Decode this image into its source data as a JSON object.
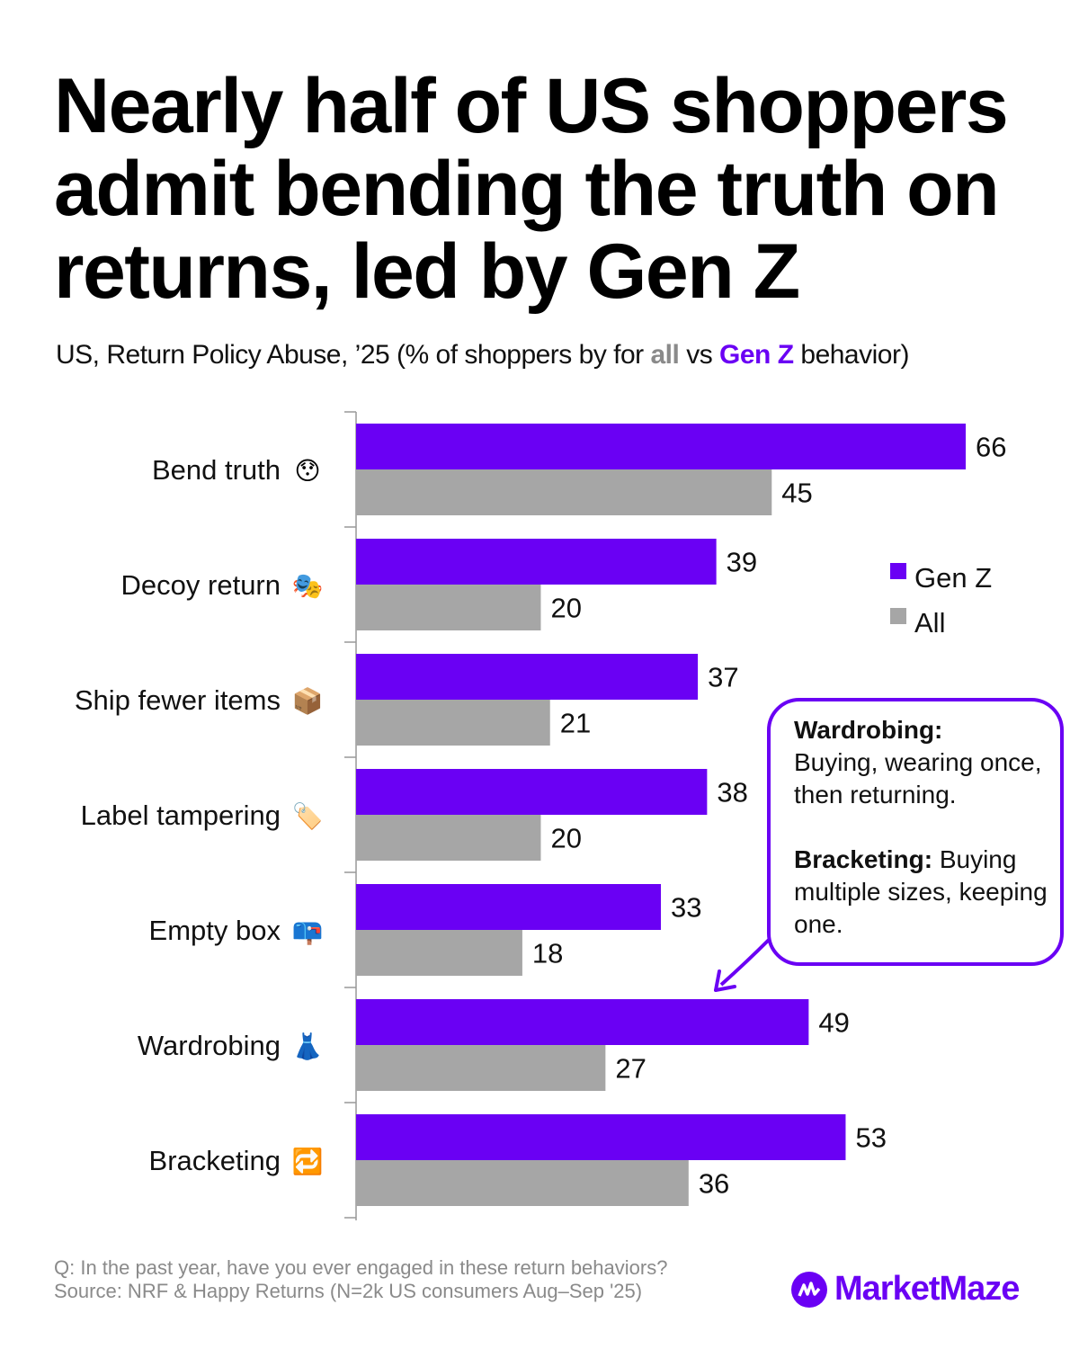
{
  "title": "Nearly half of US shoppers admit bending the truth on returns, led by Gen Z",
  "subtitle": {
    "pre": "US, Return Policy Abuse, ’25 (% of shoppers by for ",
    "all": "all",
    "mid": " vs ",
    "genz": "Gen Z",
    "post": " behavior)"
  },
  "chart_data": {
    "type": "bar",
    "orientation": "horizontal",
    "categories": [
      "Bend truth",
      "Decoy return",
      "Ship fewer items",
      "Label tampering",
      "Empty box",
      "Wardrobing",
      "Bracketing"
    ],
    "category_emojis": [
      "😯",
      "🎭",
      "📦",
      "🏷️",
      "📪",
      "👗",
      "🔁"
    ],
    "series": [
      {
        "name": "Gen Z",
        "color": "#6a00f4",
        "values": [
          66,
          39,
          37,
          38,
          33,
          49,
          53
        ]
      },
      {
        "name": "All",
        "color": "#a6a6a6",
        "values": [
          45,
          20,
          21,
          20,
          18,
          27,
          36
        ]
      }
    ],
    "xlim": [
      0,
      70
    ],
    "legend": "right",
    "grid": false
  },
  "callout": {
    "term1": "Wardrobing:",
    "def1": "Buying, wearing once, then returning.",
    "term2": "Bracketing:",
    "def2": "Buying multiple sizes, keeping one."
  },
  "footer": {
    "question": "Q: In the past year, have you ever engaged in these return behaviors?",
    "source": "Source: NRF & Happy Returns (N=2k US consumers Aug–Sep '25)"
  },
  "brand": "MarketMaze"
}
